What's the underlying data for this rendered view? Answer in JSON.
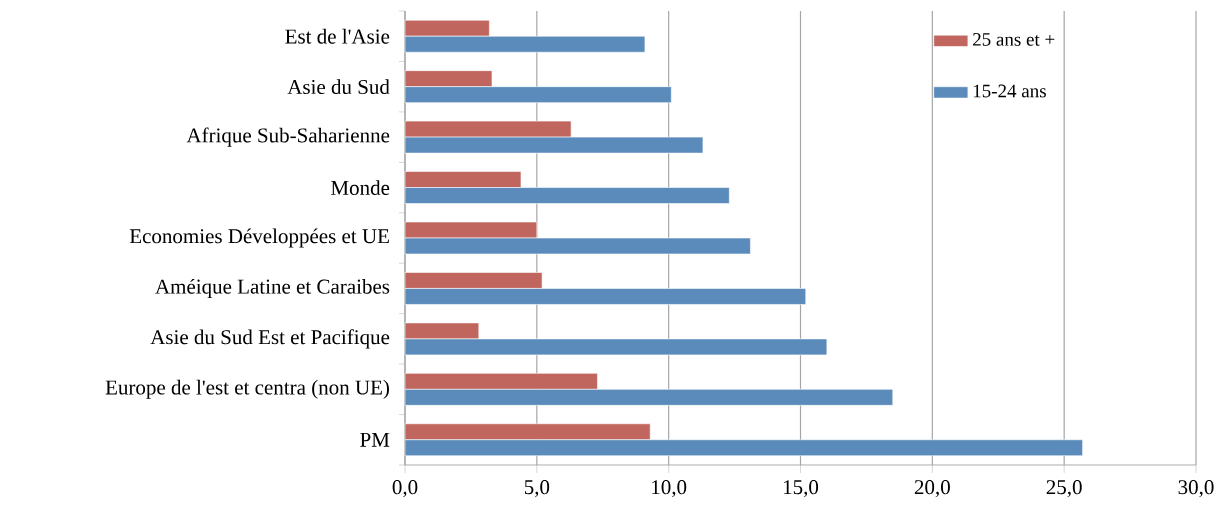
{
  "chart_data": {
    "type": "bar",
    "orientation": "horizontal",
    "categories": [
      "Est de l'Asie",
      "Asie du Sud",
      "Afrique Sub-Saharienne",
      "Monde",
      "Economies Développées et UE",
      "Améique Latine et Caraibes",
      "Asie du Sud Est et Pacifique",
      "Europe de l'est et centra (non UE)",
      "PM"
    ],
    "series": [
      {
        "name": "25 ans et +",
        "color": "#c0665e",
        "values": [
          3.2,
          3.3,
          6.3,
          4.4,
          5.0,
          5.2,
          2.8,
          7.3,
          9.3
        ]
      },
      {
        "name": "15-24 ans",
        "color": "#5a8bbb",
        "values": [
          9.1,
          10.1,
          11.3,
          12.3,
          13.1,
          15.2,
          16.0,
          18.5,
          25.7
        ]
      }
    ],
    "xlim": [
      0,
      30
    ],
    "xticks": [
      {
        "value": 0,
        "label": "0,0"
      },
      {
        "value": 5,
        "label": "5,0"
      },
      {
        "value": 10,
        "label": "10,0"
      },
      {
        "value": 15,
        "label": "15,0"
      },
      {
        "value": 20,
        "label": "20,0"
      },
      {
        "value": 25,
        "label": "25,0"
      },
      {
        "value": 30,
        "label": "30,0"
      }
    ],
    "grid": "x",
    "legend": "top right"
  }
}
